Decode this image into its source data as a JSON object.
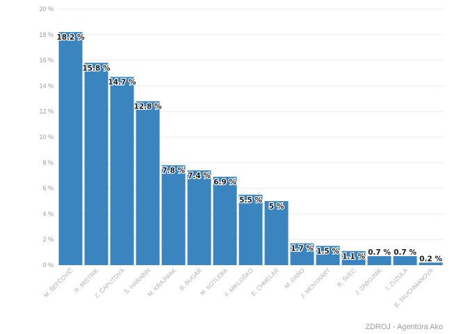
{
  "chart_data": {
    "type": "bar",
    "categories": [
      "M. ŠEFČOVIČ",
      "R. MISTRÍK",
      "Z. ČAPUTOVÁ",
      "Š. HARABIN",
      "M. KRAJNIAK",
      "B. BUGÁR",
      "M. KOTLEBA",
      "F. MIKLOŠKO",
      "E. CHMELÁR",
      "M. DAŇO",
      "J. MENYHÁRT",
      "R. ŠVEC",
      "J. ZÁBOJNÍK",
      "I. ZUZULA",
      "B. TAUCHMANOVÁ"
    ],
    "values": [
      18.2,
      15.8,
      14.7,
      12.8,
      7.8,
      7.4,
      6.9,
      5.5,
      5,
      1.7,
      1.5,
      1.1,
      0.7,
      0.7,
      0.2
    ],
    "data_labels": [
      "18.2 %",
      "15.8 %",
      "14.7 %",
      "12.8 %",
      "7.8 %",
      "7.4 %",
      "6.9 %",
      "5.5 %",
      "5 %",
      "1.7 %",
      "1.5 %",
      "1.1 %",
      "0.7 %",
      "0.7 %",
      "0.2 %"
    ],
    "y_ticks": [
      "0 %",
      "2 %",
      "4 %",
      "6 %",
      "8 %",
      "10 %",
      "12 %",
      "14 %",
      "16 %",
      "18 %",
      "20 %"
    ],
    "ylim": [
      0,
      20
    ],
    "grid": true,
    "title": "",
    "xlabel": "",
    "ylabel": "",
    "bar_color": "#3a84c0"
  },
  "source": "ZDROJ - Agentúra Ako"
}
